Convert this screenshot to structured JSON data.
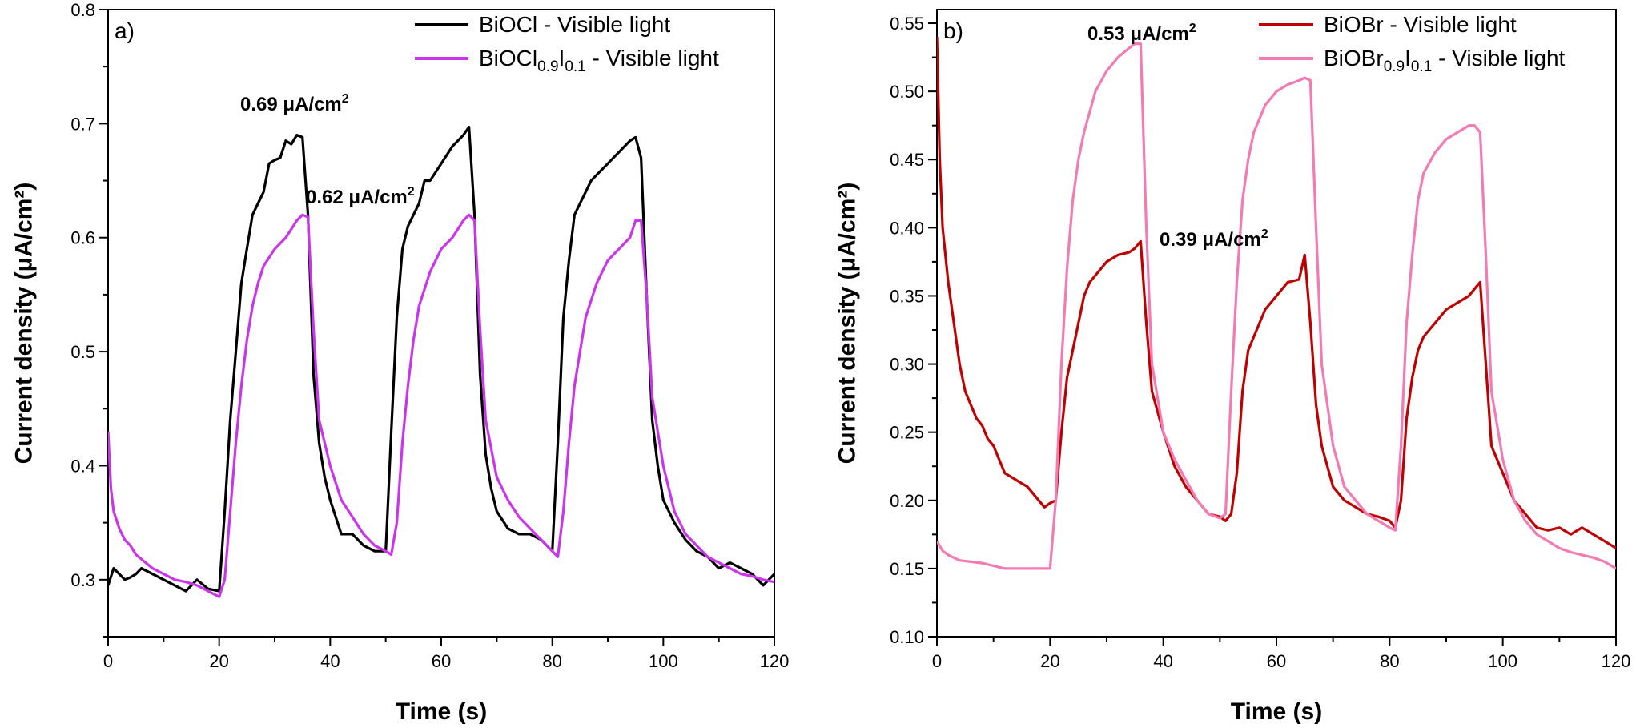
{
  "chart_data": [
    {
      "type": "line",
      "panel_label": "a)",
      "xlabel": "Time (s)",
      "ylabel": "Current density (μA/cm²)",
      "xlim": [
        0,
        120
      ],
      "ylim": [
        0.25,
        0.8
      ],
      "x_ticks": [
        "0",
        "20",
        "40",
        "60",
        "80",
        "100",
        "120"
      ],
      "y_ticks": [
        "0.3",
        "0.4",
        "0.5",
        "0.6",
        "0.7",
        "0.8"
      ],
      "grid": false,
      "legend": "top-right",
      "legend_entries": [
        {
          "base": "BiOCl - Visible light",
          "sub1": "",
          "mid": "",
          "sub2": "",
          "tail": ""
        },
        {
          "base": "BiOCl",
          "sub1": "0.9",
          "mid": "I",
          "sub2": "0.1",
          "tail": " - Visible light"
        }
      ],
      "annotations": [
        {
          "text": "0.69 μA/cm",
          "sup": "2"
        },
        {
          "text": "0.62 μA/cm",
          "sup": "2"
        }
      ],
      "colors": [
        "#000000",
        "#cc33ee"
      ],
      "series": [
        {
          "name": "BiOCl - Visible light",
          "x": [
            0,
            1,
            2,
            3,
            4,
            5,
            6,
            8,
            10,
            12,
            14,
            16,
            18,
            20,
            21,
            22,
            23,
            24,
            25,
            26,
            27,
            28,
            29,
            30,
            31,
            32,
            33,
            34,
            35,
            36,
            37,
            38,
            39,
            40,
            42,
            44,
            46,
            48,
            50,
            51,
            52,
            53,
            54,
            55,
            56,
            57,
            58,
            60,
            62,
            64,
            65,
            66,
            67,
            68,
            69,
            70,
            72,
            74,
            76,
            78,
            80,
            81,
            82,
            83,
            84,
            85,
            86,
            87,
            88,
            90,
            92,
            94,
            95,
            96,
            97,
            98,
            99,
            100,
            102,
            104,
            106,
            108,
            110,
            112,
            114,
            116,
            118,
            120
          ],
          "y": [
            0.295,
            0.31,
            0.305,
            0.3,
            0.302,
            0.305,
            0.31,
            0.305,
            0.3,
            0.295,
            0.29,
            0.3,
            0.292,
            0.29,
            0.36,
            0.44,
            0.5,
            0.56,
            0.59,
            0.62,
            0.63,
            0.64,
            0.665,
            0.668,
            0.67,
            0.685,
            0.682,
            0.69,
            0.688,
            0.62,
            0.48,
            0.42,
            0.39,
            0.37,
            0.34,
            0.34,
            0.33,
            0.325,
            0.325,
            0.43,
            0.53,
            0.59,
            0.61,
            0.62,
            0.63,
            0.65,
            0.65,
            0.665,
            0.68,
            0.69,
            0.697,
            0.62,
            0.48,
            0.41,
            0.38,
            0.36,
            0.345,
            0.34,
            0.34,
            0.335,
            0.325,
            0.42,
            0.53,
            0.58,
            0.62,
            0.63,
            0.64,
            0.65,
            0.655,
            0.665,
            0.675,
            0.685,
            0.688,
            0.67,
            0.55,
            0.44,
            0.4,
            0.37,
            0.35,
            0.335,
            0.325,
            0.32,
            0.31,
            0.315,
            0.31,
            0.305,
            0.295,
            0.305
          ]
        },
        {
          "name": "BiOCl0.9I0.1 - Visible light",
          "x": [
            0,
            0.5,
            1,
            2,
            3,
            4,
            5,
            6,
            8,
            10,
            12,
            14,
            16,
            18,
            20,
            21,
            22,
            23,
            24,
            25,
            26,
            27,
            28,
            30,
            32,
            34,
            35,
            36,
            37,
            38,
            40,
            42,
            44,
            46,
            48,
            50,
            51,
            52,
            53,
            54,
            55,
            56,
            58,
            60,
            62,
            64,
            65,
            66,
            67,
            68,
            70,
            72,
            74,
            76,
            78,
            80,
            81,
            82,
            83,
            84,
            85,
            86,
            88,
            90,
            92,
            94,
            95,
            96,
            97,
            98,
            100,
            102,
            104,
            106,
            108,
            110,
            112,
            114,
            116,
            118,
            120
          ],
          "y": [
            0.43,
            0.38,
            0.36,
            0.345,
            0.335,
            0.33,
            0.322,
            0.318,
            0.31,
            0.305,
            0.3,
            0.298,
            0.295,
            0.29,
            0.285,
            0.3,
            0.36,
            0.42,
            0.47,
            0.51,
            0.54,
            0.56,
            0.575,
            0.59,
            0.6,
            0.615,
            0.62,
            0.618,
            0.52,
            0.44,
            0.4,
            0.37,
            0.355,
            0.34,
            0.33,
            0.325,
            0.322,
            0.35,
            0.42,
            0.47,
            0.51,
            0.54,
            0.57,
            0.59,
            0.6,
            0.615,
            0.62,
            0.615,
            0.52,
            0.44,
            0.39,
            0.37,
            0.355,
            0.345,
            0.335,
            0.325,
            0.32,
            0.36,
            0.42,
            0.47,
            0.5,
            0.53,
            0.56,
            0.58,
            0.59,
            0.6,
            0.615,
            0.615,
            0.55,
            0.46,
            0.4,
            0.36,
            0.34,
            0.33,
            0.32,
            0.315,
            0.31,
            0.305,
            0.303,
            0.3,
            0.298
          ]
        }
      ]
    },
    {
      "type": "line",
      "panel_label": "b)",
      "xlabel": "Time (s)",
      "ylabel": "Current density (μA/cm²)",
      "xlim": [
        0,
        120
      ],
      "ylim": [
        0.1,
        0.56
      ],
      "x_ticks": [
        "0",
        "20",
        "40",
        "60",
        "80",
        "100",
        "120"
      ],
      "y_ticks": [
        "0.10",
        "0.15",
        "0.20",
        "0.25",
        "0.30",
        "0.35",
        "0.40",
        "0.45",
        "0.50",
        "0.55"
      ],
      "grid": false,
      "legend": "top-right",
      "legend_entries": [
        {
          "base": "BiOBr - Visible light",
          "sub1": "",
          "mid": "",
          "sub2": "",
          "tail": ""
        },
        {
          "base": "BiOBr",
          "sub1": "0.9",
          "mid": "I",
          "sub2": "0.1",
          "tail": " - Visible light"
        }
      ],
      "annotations": [
        {
          "text": "0.53 μA/cm",
          "sup": "2"
        },
        {
          "text": "0.39 μA/cm",
          "sup": "2"
        }
      ],
      "colors": [
        "#c00000",
        "#f47ab4"
      ],
      "series": [
        {
          "name": "BiOBr - Visible light",
          "x": [
            0,
            0.5,
            1,
            2,
            3,
            4,
            5,
            6,
            7,
            8,
            9,
            10,
            11,
            12,
            14,
            16,
            18,
            19,
            20,
            21,
            22,
            23,
            24,
            25,
            26,
            27,
            28,
            30,
            32,
            34,
            35,
            36,
            37,
            38,
            40,
            42,
            44,
            46,
            48,
            50,
            51,
            52,
            53,
            54,
            55,
            56,
            57,
            58,
            60,
            62,
            64,
            65,
            66,
            67,
            68,
            70,
            72,
            74,
            76,
            78,
            80,
            81,
            82,
            83,
            84,
            85,
            86,
            88,
            90,
            92,
            94,
            95,
            96,
            97,
            98,
            100,
            102,
            104,
            106,
            108,
            110,
            112,
            114,
            116,
            118,
            120
          ],
          "y": [
            0.54,
            0.45,
            0.4,
            0.36,
            0.33,
            0.3,
            0.28,
            0.27,
            0.26,
            0.255,
            0.245,
            0.24,
            0.23,
            0.22,
            0.215,
            0.21,
            0.2,
            0.195,
            0.198,
            0.2,
            0.25,
            0.29,
            0.31,
            0.33,
            0.35,
            0.36,
            0.365,
            0.375,
            0.38,
            0.382,
            0.385,
            0.39,
            0.33,
            0.28,
            0.25,
            0.225,
            0.21,
            0.2,
            0.19,
            0.188,
            0.185,
            0.19,
            0.22,
            0.28,
            0.31,
            0.32,
            0.33,
            0.34,
            0.35,
            0.36,
            0.362,
            0.38,
            0.33,
            0.27,
            0.24,
            0.21,
            0.2,
            0.195,
            0.19,
            0.188,
            0.185,
            0.18,
            0.2,
            0.26,
            0.29,
            0.31,
            0.32,
            0.33,
            0.34,
            0.345,
            0.35,
            0.355,
            0.36,
            0.3,
            0.24,
            0.22,
            0.2,
            0.19,
            0.18,
            0.178,
            0.18,
            0.175,
            0.18,
            0.175,
            0.17,
            0.165
          ]
        },
        {
          "name": "BiOBr0.9I0.1 - Visible light",
          "x": [
            0,
            1,
            2,
            4,
            6,
            8,
            10,
            12,
            14,
            16,
            18,
            20,
            21,
            22,
            23,
            24,
            25,
            26,
            28,
            30,
            32,
            34,
            35,
            36,
            37,
            38,
            40,
            42,
            44,
            46,
            48,
            50,
            51,
            52,
            53,
            54,
            55,
            56,
            58,
            60,
            62,
            64,
            65,
            66,
            67,
            68,
            70,
            72,
            74,
            76,
            78,
            80,
            81,
            82,
            83,
            84,
            85,
            86,
            88,
            90,
            92,
            94,
            95,
            96,
            97,
            98,
            100,
            102,
            104,
            106,
            108,
            110,
            112,
            114,
            116,
            118,
            120
          ],
          "y": [
            0.17,
            0.163,
            0.16,
            0.156,
            0.155,
            0.154,
            0.152,
            0.15,
            0.15,
            0.15,
            0.15,
            0.15,
            0.2,
            0.3,
            0.37,
            0.42,
            0.45,
            0.47,
            0.5,
            0.515,
            0.525,
            0.532,
            0.535,
            0.535,
            0.4,
            0.3,
            0.25,
            0.23,
            0.215,
            0.2,
            0.19,
            0.187,
            0.19,
            0.28,
            0.36,
            0.42,
            0.45,
            0.47,
            0.49,
            0.5,
            0.505,
            0.508,
            0.51,
            0.508,
            0.4,
            0.3,
            0.24,
            0.21,
            0.2,
            0.19,
            0.185,
            0.18,
            0.178,
            0.24,
            0.33,
            0.38,
            0.42,
            0.44,
            0.455,
            0.465,
            0.47,
            0.475,
            0.475,
            0.47,
            0.38,
            0.28,
            0.23,
            0.2,
            0.185,
            0.175,
            0.17,
            0.165,
            0.162,
            0.16,
            0.158,
            0.155,
            0.15
          ]
        }
      ]
    }
  ]
}
